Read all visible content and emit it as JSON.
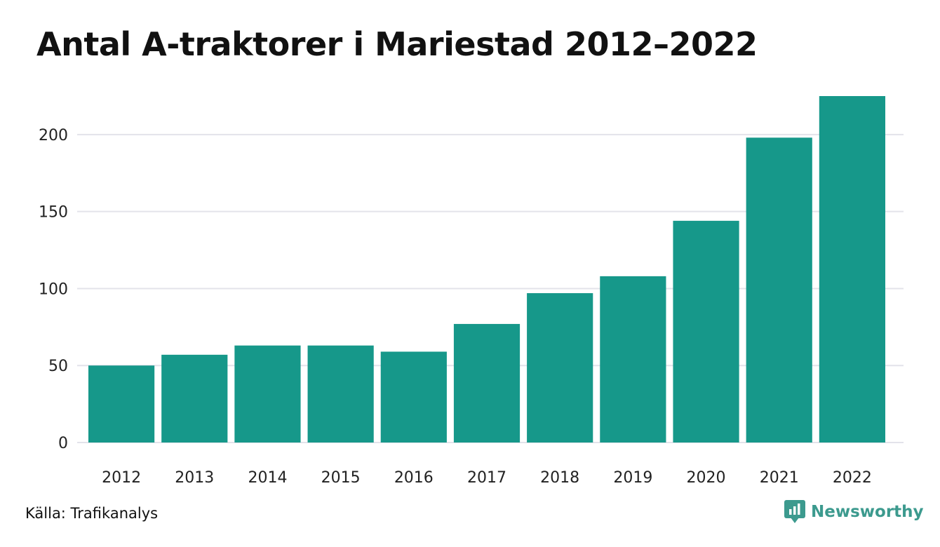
{
  "chart_data": {
    "type": "bar",
    "title": "Antal A-traktorer i Mariestad 2012–2022",
    "xlabel": "",
    "ylabel": "",
    "categories": [
      "2012",
      "2013",
      "2014",
      "2015",
      "2016",
      "2017",
      "2018",
      "2019",
      "2020",
      "2021",
      "2022"
    ],
    "values": [
      50,
      57,
      63,
      63,
      59,
      77,
      97,
      108,
      144,
      198,
      225
    ],
    "ylim": [
      0,
      225
    ],
    "yticks": [
      0,
      50,
      100,
      150,
      200
    ],
    "grid": true,
    "bar_color": "#16988a",
    "grid_color": "#e3e3ea"
  },
  "footer": {
    "source": "Källa: Trafikanalys",
    "brand": "Newsworthy",
    "brand_color": "#3c9a8e",
    "brand_icon": "newsworthy-logo-icon"
  }
}
